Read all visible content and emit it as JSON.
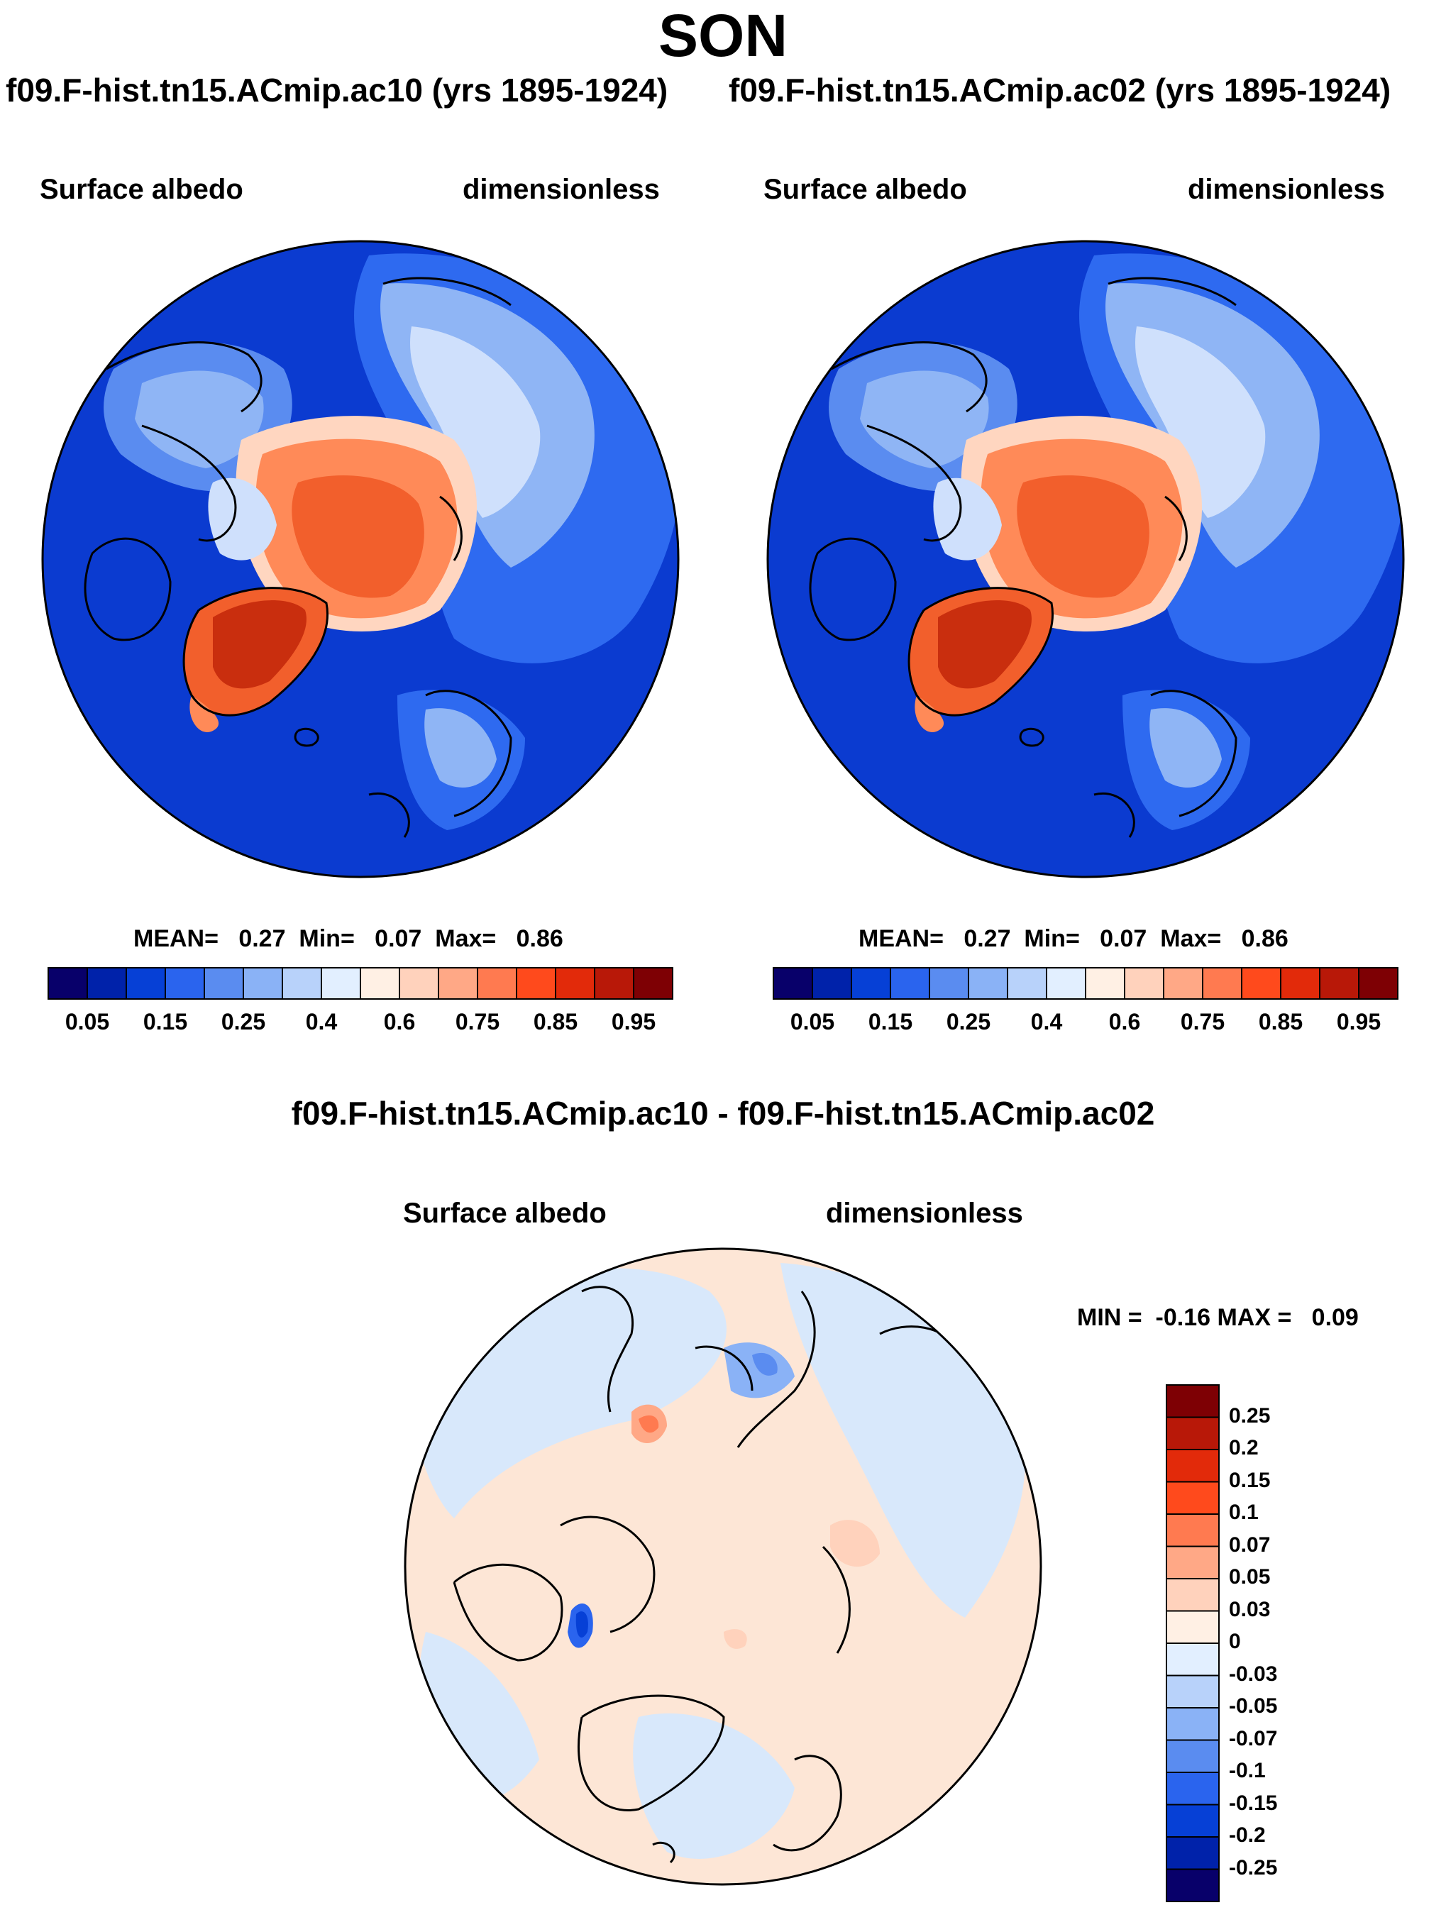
{
  "figure": {
    "season": "SON",
    "panels": [
      {
        "id": "ac10",
        "case_title": "f09.F-hist.tn15.ACmip.ac10 (yrs 1895-1924)",
        "variable": "Surface albedo",
        "units": "dimensionless",
        "stats": {
          "mean_label": "MEAN=",
          "mean": "0.27",
          "min_label": "Min=",
          "min": "0.07",
          "max_label": "Max=",
          "max": "0.86"
        }
      },
      {
        "id": "ac02",
        "case_title": "f09.F-hist.tn15.ACmip.ac02 (yrs 1895-1924)",
        "variable": "Surface albedo",
        "units": "dimensionless",
        "stats": {
          "mean_label": "MEAN=",
          "mean": "0.27",
          "min_label": "Min=",
          "min": "0.07",
          "max_label": "Max=",
          "max": "0.86"
        }
      }
    ],
    "diff_panel": {
      "title": "f09.F-hist.tn15.ACmip.ac10 - f09.F-hist.tn15.ACmip.ac02",
      "variable": "Surface albedo",
      "units": "dimensionless",
      "stats_text": "MIN =  -0.16 MAX =   0.09"
    }
  },
  "colorbar_abs": {
    "labels": [
      "0.05",
      "0.15",
      "0.25",
      "0.4",
      "0.6",
      "0.75",
      "0.85",
      "0.95"
    ],
    "colors": [
      "#08006a",
      "#0022aa",
      "#0640d6",
      "#2a64ee",
      "#5a8cf0",
      "#8ab2f6",
      "#b8d2fa",
      "#e2efff",
      "#fff0e4",
      "#ffd2bc",
      "#ffa886",
      "#ff7a50",
      "#ff4a1c",
      "#e22a0a",
      "#b81808",
      "#7e0004"
    ]
  },
  "colorbar_diff": {
    "labels": [
      "0.25",
      "0.2",
      "0.15",
      "0.1",
      "0.07",
      "0.05",
      "0.03",
      "0",
      "-0.03",
      "-0.05",
      "-0.07",
      "-0.1",
      "-0.15",
      "-0.2",
      "-0.25"
    ],
    "colors": [
      "#7e0004",
      "#b81808",
      "#e22a0a",
      "#ff4a1c",
      "#ff7a50",
      "#ffa886",
      "#ffd2bc",
      "#fff0e4",
      "#e2efff",
      "#b8d2fa",
      "#8ab2f6",
      "#5a8cf0",
      "#2a64ee",
      "#0640d6",
      "#0022aa",
      "#08006a"
    ]
  },
  "map_colors": {
    "ocean": "#0b3bd0",
    "mid_blue": "#2e6af0",
    "light_blue": "#8fb5f5",
    "pale_blue": "#cfe0fc",
    "pale_orange": "#ffd6c0",
    "orange": "#ff8a58",
    "red_orange": "#f25f2c",
    "deep_red": "#c92e0e",
    "diff_pos": "#fde6d6",
    "diff_neg": "#d8e8fb",
    "coast": "#000000"
  }
}
